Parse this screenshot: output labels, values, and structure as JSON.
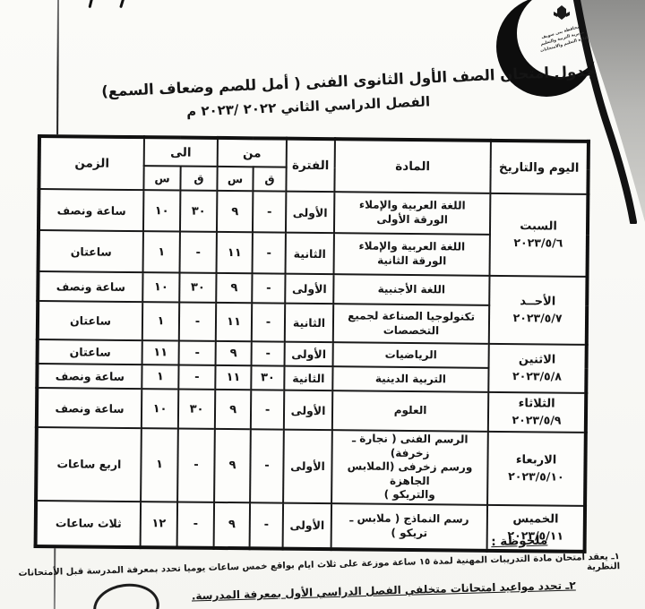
{
  "header": {
    "title_line1": "جدول امتحان الصف الأول الثانوى الفنى ( أمل للصم وضعاف السمع)",
    "title_line2": "الفصل الدراسي الثاني ٢٠٢٢ /٢٠٢٣ م"
  },
  "stamp": {
    "lines": [
      "محافظة بنى سويف",
      "مديرية التربية والتعليم",
      "ادارة التعليم والامتحانات"
    ]
  },
  "table": {
    "headers": {
      "day": "اليوم والتاريخ",
      "subject": "المادة",
      "period": "الفترة",
      "from": "من",
      "to": "الى",
      "hours": "س",
      "minutes": "ق",
      "duration": "الزمن"
    },
    "rows": [
      {
        "day": "السبت",
        "date": "٢٠٢٣/٥/٦",
        "day_rowspan": 2,
        "subject": "اللغة العربية والإملاء\nالورقة الأولى",
        "period": "الأولى",
        "from_q": "-",
        "from_s": "٩",
        "to_q": "٣٠",
        "to_s": "١٠",
        "duration": "ساعة ونصف"
      },
      {
        "subject": "اللغة العربية والإملاء\nالورقة الثانية",
        "period": "الثانية",
        "from_q": "-",
        "from_s": "١١",
        "to_q": "-",
        "to_s": "١",
        "duration": "ساعتان"
      },
      {
        "day": "الأحــد",
        "date": "٢٠٢٣/٥/٧",
        "day_rowspan": 2,
        "subject": "اللغة الأجنبية",
        "period": "الأولى",
        "from_q": "-",
        "from_s": "٩",
        "to_q": "٣٠",
        "to_s": "١٠",
        "duration": "ساعة ونصف"
      },
      {
        "subject": "تكنولوجيا الصناعة لجميع\nالتخصصات",
        "period": "الثانية",
        "from_q": "-",
        "from_s": "١١",
        "to_q": "-",
        "to_s": "١",
        "duration": "ساعتان"
      },
      {
        "day": "الاثنين",
        "date": "٢٠٢٣/٥/٨",
        "day_rowspan": 2,
        "subject": "الرياضيات",
        "period": "الأولى",
        "from_q": "-",
        "from_s": "٩",
        "to_q": "-",
        "to_s": "١١",
        "duration": "ساعتان"
      },
      {
        "subject": "التربية الدينية",
        "period": "الثانية",
        "from_q": "٣٠",
        "from_s": "١١",
        "to_q": "-",
        "to_s": "١",
        "duration": "ساعة ونصف"
      },
      {
        "day": "الثلاثاء",
        "date": "٢٠٢٣/٥/٩",
        "day_rowspan": 1,
        "subject": "العلوم",
        "period": "الأولى",
        "from_q": "-",
        "from_s": "٩",
        "to_q": "٣٠",
        "to_s": "١٠",
        "duration": "ساعة ونصف"
      },
      {
        "day": "الاربعاء",
        "date": "٢٠٢٣/٥/١٠",
        "day_rowspan": 1,
        "subject": "الرسم الفنى ( نجارة ـ زخرفة)\nورسم زخرفى (الملابس الجاهزة\nوالتريكو )",
        "period": "الأولى",
        "from_q": "-",
        "from_s": "٩",
        "to_q": "-",
        "to_s": "١",
        "duration": "اربع ساعات"
      },
      {
        "day": "الخميس",
        "date": "٢٠٢٣/٥/١١",
        "day_rowspan": 1,
        "subject": "رسم النماذج ( ملابس ـ تريكو )",
        "period": "الأولى",
        "from_q": "-",
        "from_s": "٩",
        "to_q": "-",
        "to_s": "١٢",
        "duration": "ثلاث ساعات"
      }
    ]
  },
  "notes": {
    "heading": "ملحوظة :",
    "items": [
      "١ـ يعقد امتحان مادة التدريبات المهنية لمدة ١٥ ساعة موزعة على ثلاث ايام بواقع خمس ساعات يوميا تحدد بمعرفة المدرسة قبل الأمتحانات النظرية",
      "٢ـ تحدد مواعيد امتحانات متخلفي الفصل الدراسي الأول بمعرفة المدرسة."
    ]
  }
}
